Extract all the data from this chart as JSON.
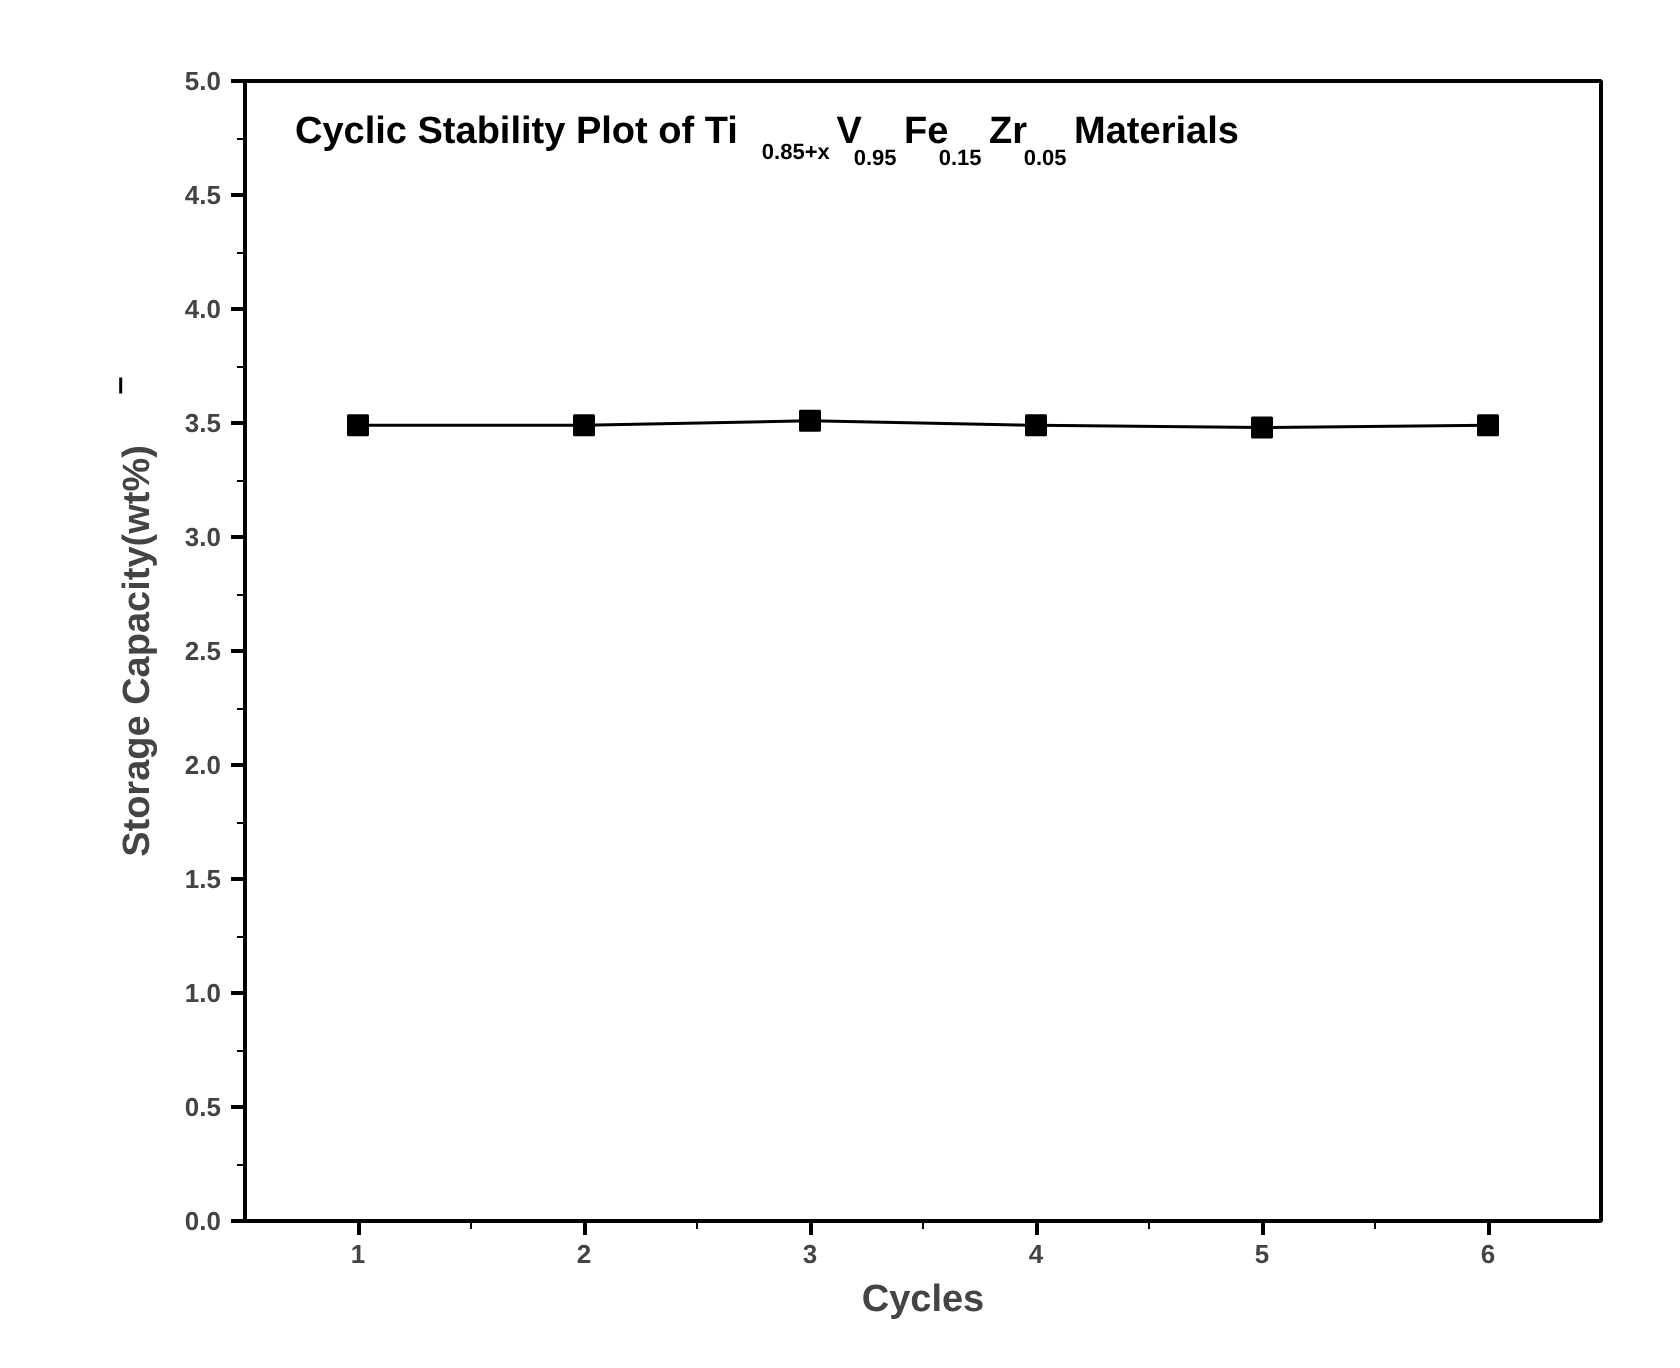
{
  "chart_data": {
    "type": "line",
    "title": "Cyclic Stability Plot of Ti$_{0.85+x}$V$_{0.95}$Fe$_{0.15}$Zr$_{0.05}$ Materials",
    "xlabel": "Cycles",
    "ylabel": "Storage Capacity(wt%)",
    "x": [
      1,
      2,
      3,
      4,
      5,
      6
    ],
    "series": [
      {
        "color": "#000000",
        "values": [
          3.49,
          3.49,
          3.51,
          3.49,
          3.48,
          3.49
        ]
      }
    ],
    "xlim": [
      0.5,
      6.5
    ],
    "ylim": [
      0,
      5
    ],
    "xticks": [
      1,
      2,
      3,
      4,
      5,
      6
    ],
    "yticks": [
      {
        "value": 0,
        "label": "0.0"
      },
      {
        "value": 0.5,
        "label": "0.5"
      },
      {
        "value": 1,
        "label": "1.0"
      },
      {
        "value": 1.5,
        "label": "1.5"
      },
      {
        "value": 2,
        "label": "2.0"
      },
      {
        "value": 2.5,
        "label": "2.5"
      },
      {
        "value": 3,
        "label": "3.0"
      },
      {
        "value": 3.5,
        "label": "3.5"
      },
      {
        "value": 4,
        "label": "4.0"
      },
      {
        "value": 4.5,
        "label": "4.5"
      },
      {
        "value": 5,
        "label": "5.0"
      }
    ],
    "marker": "square",
    "line_style": "solid",
    "grid": false
  }
}
